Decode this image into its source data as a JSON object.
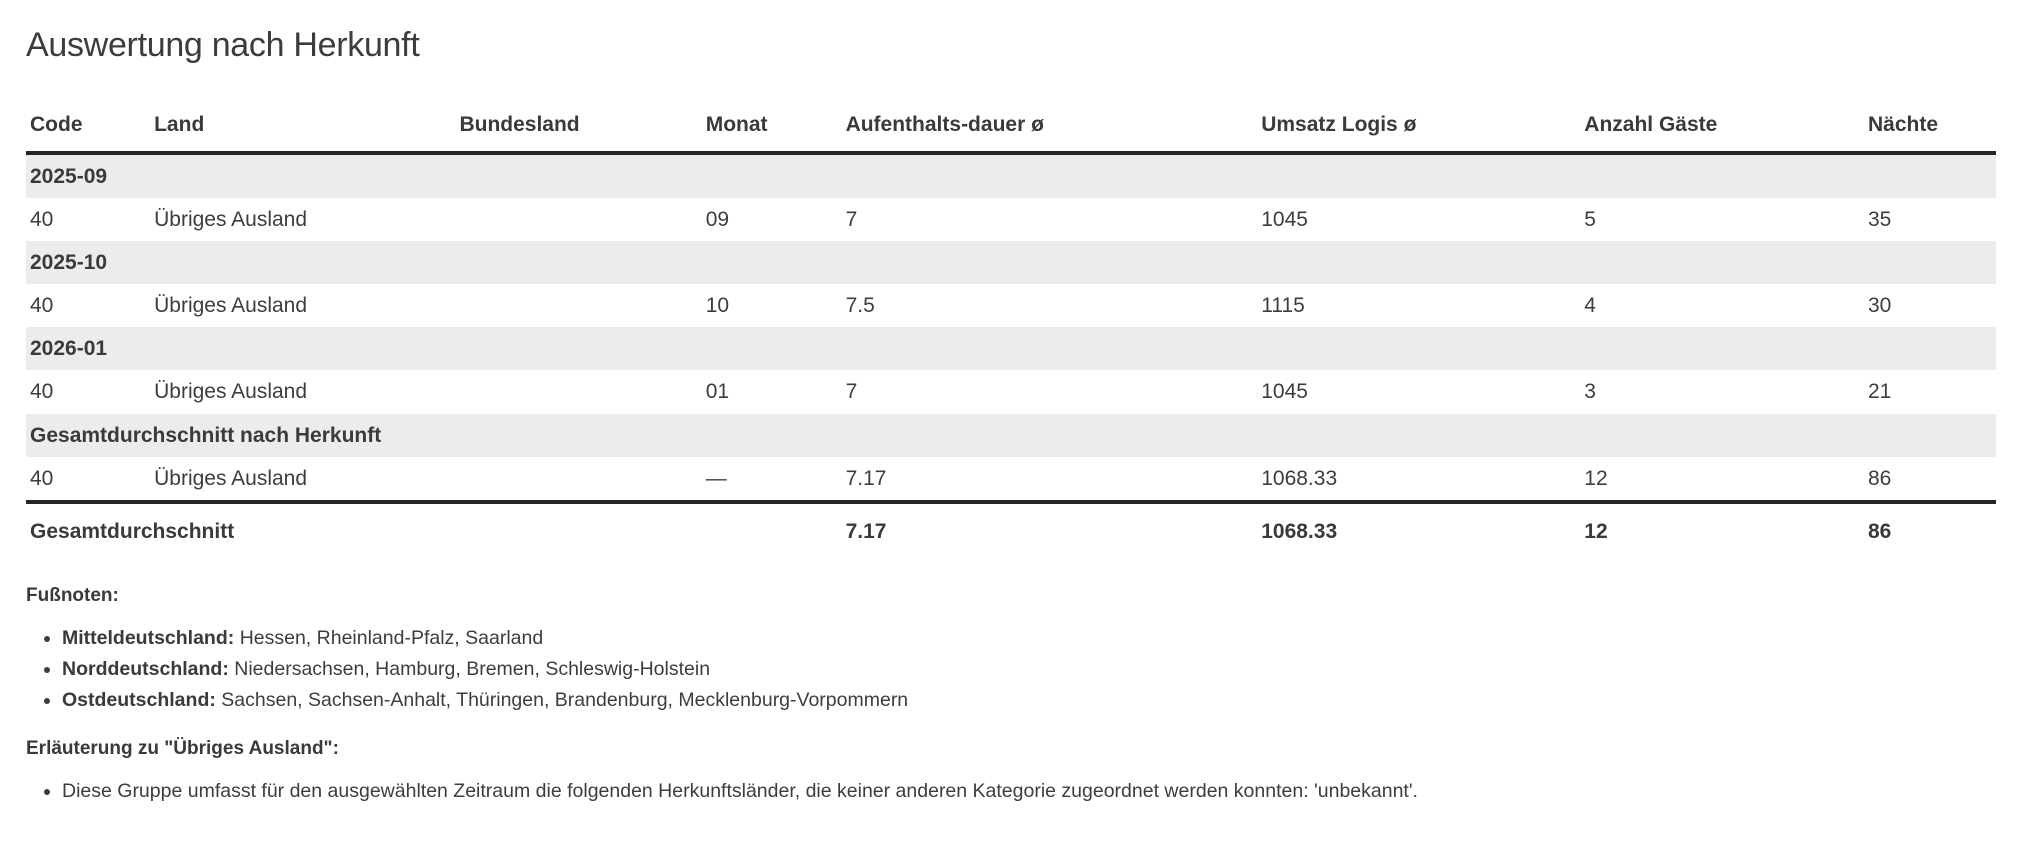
{
  "page": {
    "title": "Auswertung nach Herkunft"
  },
  "table": {
    "columns": [
      "Code",
      "Land",
      "Bundesland",
      "Monat",
      "Aufenthalts-dauer ø",
      "Umsatz Logis ø",
      "Anzahl Gäste",
      "Nächte"
    ],
    "groups": [
      {
        "label": "2025-09",
        "rows": [
          [
            "40",
            "Übriges Ausland",
            "",
            "09",
            "7",
            "1045",
            "5",
            "35"
          ]
        ]
      },
      {
        "label": "2025-10",
        "rows": [
          [
            "40",
            "Übriges Ausland",
            "",
            "10",
            "7.5",
            "1115",
            "4",
            "30"
          ]
        ]
      },
      {
        "label": "2026-01",
        "rows": [
          [
            "40",
            "Übriges Ausland",
            "",
            "01",
            "7",
            "1045",
            "3",
            "21"
          ]
        ]
      },
      {
        "label": "Gesamtdurchschnitt nach Herkunft",
        "rows": [
          [
            "40",
            "Übriges Ausland",
            "",
            "—",
            "7.17",
            "1068.33",
            "12",
            "86"
          ]
        ]
      }
    ],
    "total": {
      "label": "Gesamtdurchschnitt",
      "values": [
        "7.17",
        "1068.33",
        "12",
        "86"
      ]
    }
  },
  "footnotes": {
    "heading": "Fußnoten:",
    "items": [
      {
        "term": "Mitteldeutschland:",
        "text": "Hessen, Rheinland-Pfalz, Saarland"
      },
      {
        "term": "Norddeutschland:",
        "text": "Niedersachsen, Hamburg, Bremen, Schleswig-Holstein"
      },
      {
        "term": "Ostdeutschland:",
        "text": "Sachsen, Sachsen-Anhalt, Thüringen, Brandenburg, Mecklenburg-Vorpommern"
      }
    ],
    "explanation_heading": "Erläuterung zu \"Übriges Ausland\":",
    "explanation_items": [
      "Diese Gruppe umfasst für den ausgewählten Zeitraum die folgenden Herkunftsländer, die keiner anderen Kategorie zugeordnet werden konnten: 'unbekannt'."
    ]
  },
  "colors": {
    "text": "#3d3d3d",
    "heading_text": "#3a3a3a",
    "group_row_background": "#ececec",
    "rule": "#262626",
    "background": "#ffffff"
  }
}
